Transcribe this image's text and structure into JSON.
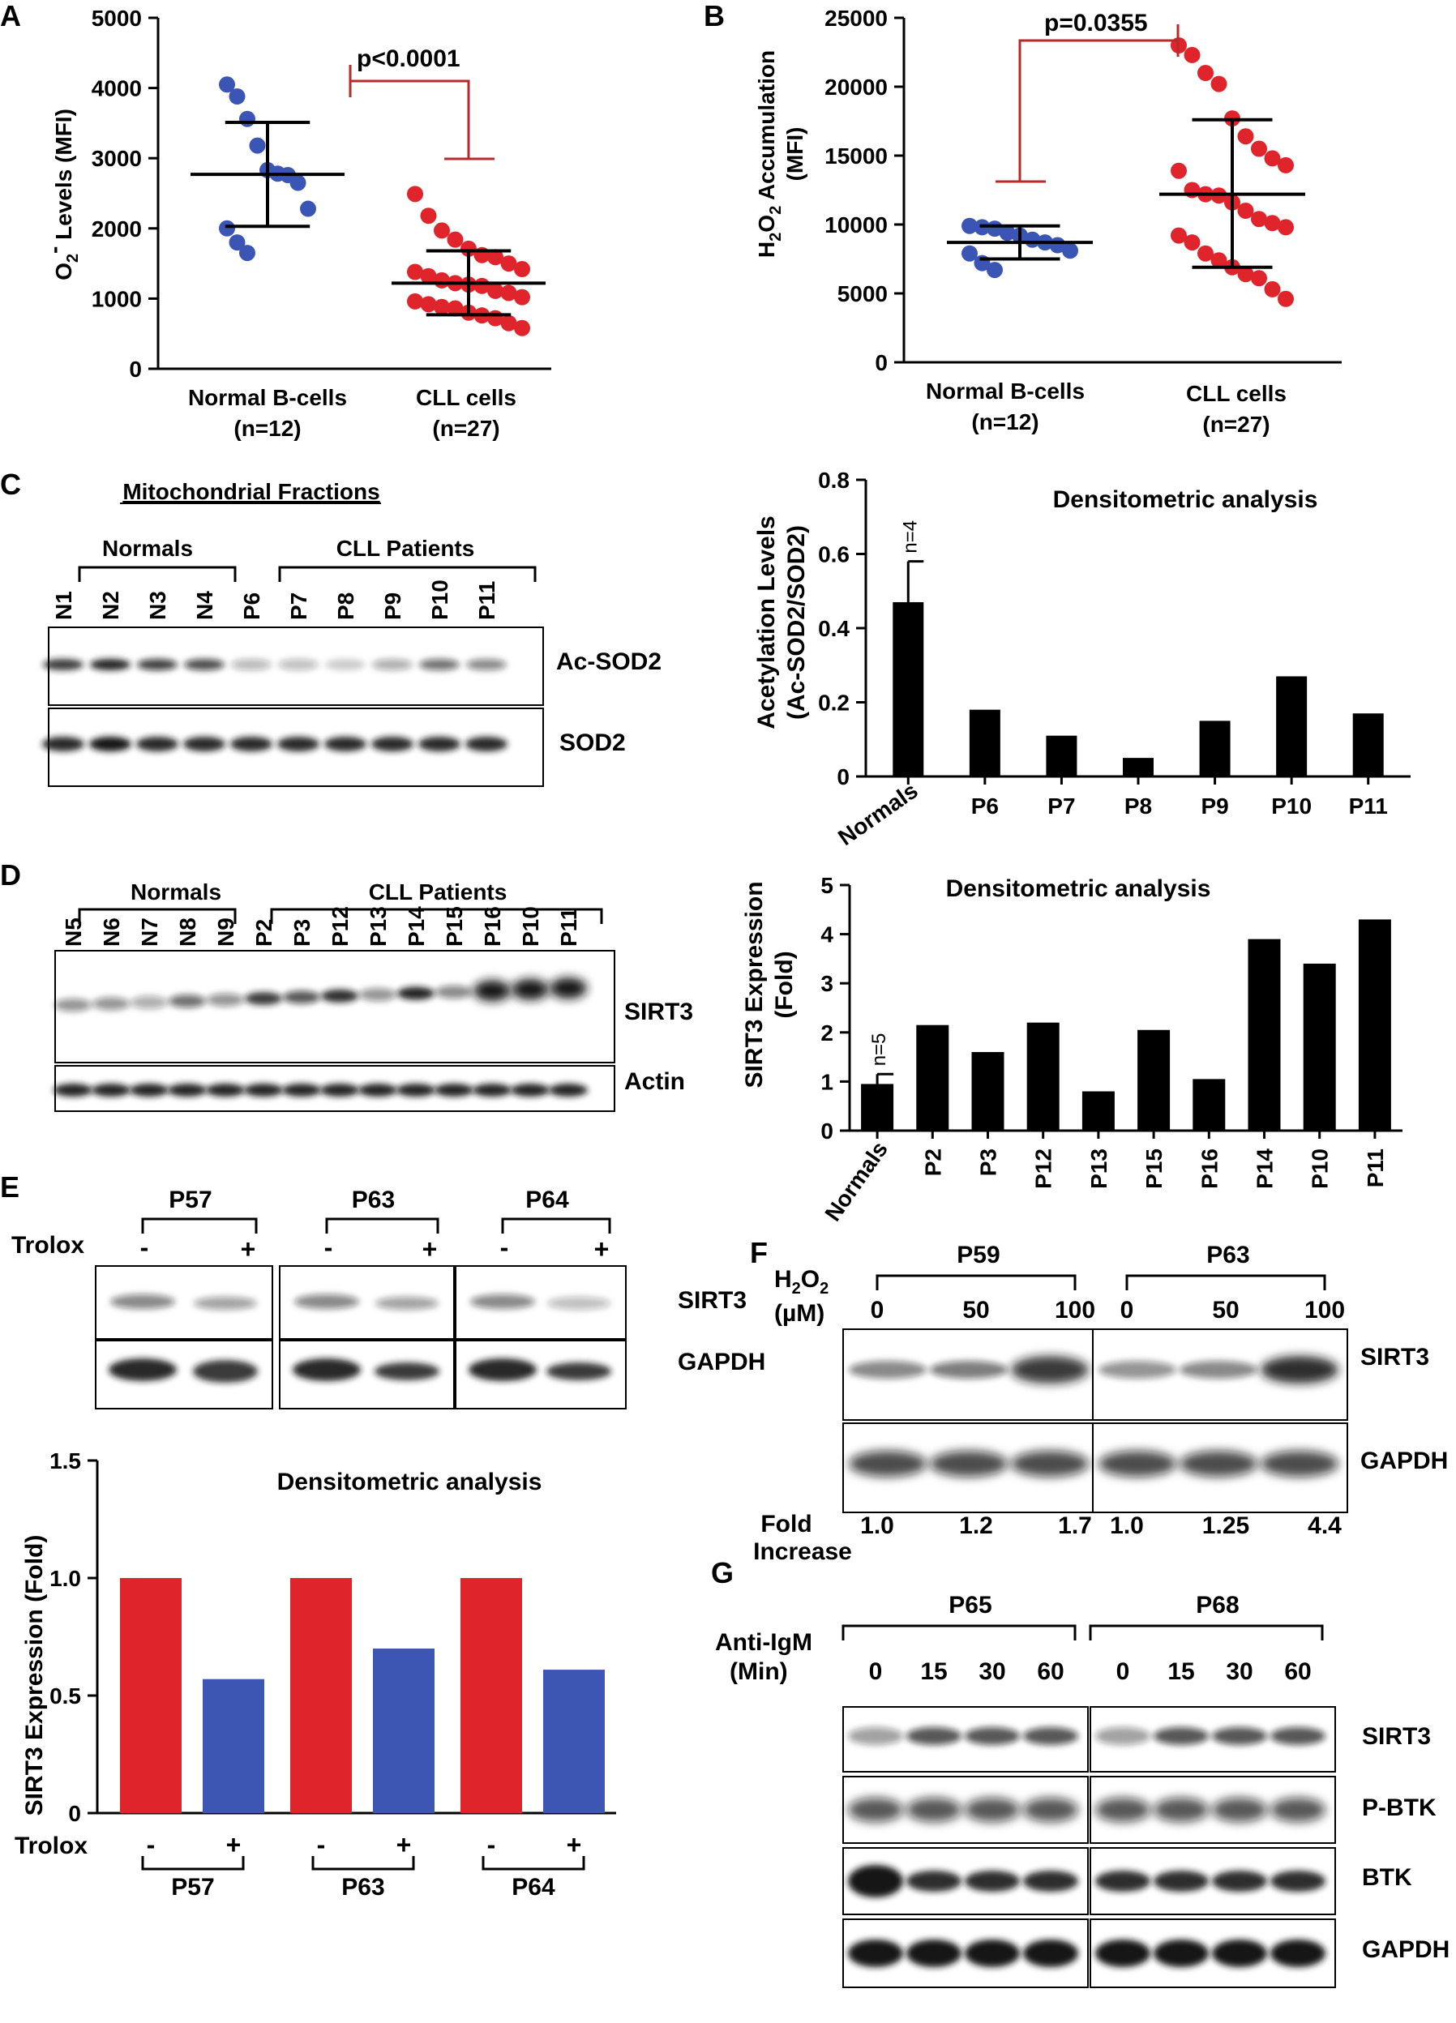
{
  "colors": {
    "normal": "#3b55b5",
    "cll": "#e0242b",
    "sig": "#b52a2a",
    "bar": "#000000",
    "red_bar": "#e0242b",
    "blue_bar": "#3d55b3"
  },
  "panels": {
    "A": "A",
    "B": "B",
    "C": "C",
    "D": "D",
    "E": "E",
    "F": "F",
    "G": "G"
  },
  "blots": {
    "C": {
      "title": "Mitochondrial Fractions",
      "group1": "Normals",
      "group2": "CLL Patients",
      "lanes": [
        "N1",
        "N2",
        "N3",
        "N4",
        "P6",
        "P7",
        "P8",
        "P9",
        "P10",
        "P11"
      ],
      "bands": [
        "Ac-SOD2",
        "SOD2"
      ]
    },
    "D": {
      "group1": "Normals",
      "group2": "CLL Patients",
      "lanes": [
        "N5",
        "N6",
        "N7",
        "N8",
        "N9",
        "P2",
        "P3",
        "P12",
        "P13",
        "P14",
        "P15",
        "P16",
        "P10",
        "P11"
      ],
      "bands": [
        "SIRT3",
        "Actin"
      ]
    },
    "E": {
      "treatment": "Trolox",
      "patients": [
        "P57",
        "P63",
        "P64"
      ],
      "minus": "-",
      "plus": "+",
      "bands": [
        "SIRT3",
        "GAPDH"
      ]
    },
    "F": {
      "treatment_top": "H2O2",
      "treatment_unit": "(µM)",
      "patients": [
        "P59",
        "P63"
      ],
      "doses": [
        "0",
        "50",
        "100"
      ],
      "bands": [
        "SIRT3",
        "GAPDH"
      ],
      "fold_label_1": "Fold",
      "fold_label_2": "Increase",
      "fold_p59": [
        "1.0",
        "1.2",
        "1.7"
      ],
      "fold_p63": [
        "1.0",
        "1.25",
        "4.4"
      ]
    },
    "G": {
      "treatment": "Anti-IgM",
      "treatment_unit": "(Min)",
      "patients": [
        "P65",
        "P68"
      ],
      "times": [
        "0",
        "15",
        "30",
        "60"
      ],
      "bands": [
        "SIRT3",
        "P-BTK",
        "BTK",
        "GAPDH"
      ]
    }
  },
  "chart_data": [
    {
      "id": "A",
      "type": "scatter",
      "ylabel": "O2- Levels (MFI)",
      "ylim": [
        0,
        5000
      ],
      "yticks": [
        0,
        1000,
        2000,
        3000,
        4000,
        5000
      ],
      "categories": [
        "Normal B-cells",
        "CLL cells"
      ],
      "category_n": [
        "(n=12)",
        "(n=27)"
      ],
      "series": [
        {
          "name": "Normal B-cells",
          "mean": 2770,
          "sd_low": 2030,
          "sd_high": 3510,
          "values": [
            4050,
            3880,
            3560,
            3180,
            2830,
            2780,
            2760,
            2650,
            2280,
            2000,
            1800,
            1650
          ]
        },
        {
          "name": "CLL cells",
          "mean": 1220,
          "sd_low": 770,
          "sd_high": 1680,
          "values": [
            2490,
            2180,
            1970,
            1840,
            1710,
            1620,
            1590,
            1500,
            1420,
            1380,
            1320,
            1260,
            1220,
            1200,
            1180,
            1110,
            1080,
            1020,
            960,
            920,
            880,
            860,
            800,
            760,
            720,
            650,
            580
          ]
        }
      ],
      "annotation": "p<0.0001"
    },
    {
      "id": "B",
      "type": "scatter",
      "ylabel": "H2O2 Accumulation (MFI)",
      "ylim": [
        0,
        25000
      ],
      "yticks": [
        0,
        5000,
        10000,
        15000,
        20000,
        25000
      ],
      "categories": [
        "Normal B-cells",
        "CLL cells"
      ],
      "category_n": [
        "(n=12)",
        "(n=27)"
      ],
      "series": [
        {
          "name": "Normal B-cells",
          "mean": 8700,
          "sd_low": 7500,
          "sd_high": 9900,
          "values": [
            9900,
            9800,
            9700,
            9400,
            9200,
            8900,
            8700,
            8500,
            8100,
            7900,
            7200,
            6700
          ]
        },
        {
          "name": "CLL cells",
          "mean": 12200,
          "sd_low": 6900,
          "sd_high": 17600,
          "values": [
            23000,
            22300,
            21000,
            20200,
            17700,
            16400,
            15500,
            14800,
            14300,
            13900,
            12500,
            12200,
            12100,
            11600,
            11000,
            10400,
            10100,
            9800,
            9200,
            8700,
            7900,
            7400,
            6900,
            6400,
            6100,
            5300,
            4600
          ]
        }
      ],
      "annotation": "p=0.0355"
    },
    {
      "id": "C",
      "type": "bar",
      "title": "Densitometric analysis",
      "ylabel_1": "Acetylation Levels",
      "ylabel_2": "(Ac-SOD2/SOD2)",
      "ylim": [
        0,
        0.8
      ],
      "yticks": [
        0,
        0.2,
        0.4,
        0.6,
        0.8
      ],
      "ytick_labels": [
        "0",
        "0.2",
        "0.4",
        "0.6",
        "0.8"
      ],
      "categories": [
        "Normals",
        "P6",
        "P7",
        "P8",
        "P9",
        "P10",
        "P11"
      ],
      "values": [
        0.47,
        0.18,
        0.11,
        0.05,
        0.15,
        0.27,
        0.17
      ],
      "error": [
        0.11,
        0,
        0,
        0,
        0,
        0,
        0
      ],
      "n_label": "n=4"
    },
    {
      "id": "D",
      "type": "bar",
      "title": "Densitometric analysis",
      "ylabel_1": "SIRT3 Expression",
      "ylabel_2": "(Fold)",
      "ylim": [
        0,
        5
      ],
      "yticks": [
        0,
        1,
        2,
        3,
        4,
        5
      ],
      "ytick_labels": [
        "0",
        "1",
        "2",
        "3",
        "4",
        "5"
      ],
      "categories": [
        "Normals",
        "P2",
        "P3",
        "P12",
        "P13",
        "P15",
        "P16",
        "P14",
        "P10",
        "P11"
      ],
      "values": [
        0.95,
        2.15,
        1.6,
        2.2,
        0.8,
        2.05,
        1.05,
        3.9,
        3.4,
        4.3
      ],
      "error": [
        0.2,
        0,
        0,
        0,
        0,
        0,
        0,
        0,
        0,
        0
      ],
      "n_label": "n=5"
    },
    {
      "id": "E",
      "type": "bar",
      "title": "Densitometric analysis",
      "ylabel": "SIRT3 Expression (Fold)",
      "ylim": [
        0,
        1.5
      ],
      "yticks": [
        0,
        0.5,
        1.0,
        1.5
      ],
      "ytick_labels": [
        "0",
        "0.5",
        "1.0",
        "1.5"
      ],
      "categories": [
        "P57",
        "P63",
        "P64"
      ],
      "series": [
        {
          "name": "-",
          "values": [
            1.0,
            1.0,
            1.0
          ]
        },
        {
          "name": "+",
          "values": [
            0.57,
            0.7,
            0.61
          ]
        }
      ],
      "xlabel": "Trolox"
    }
  ]
}
